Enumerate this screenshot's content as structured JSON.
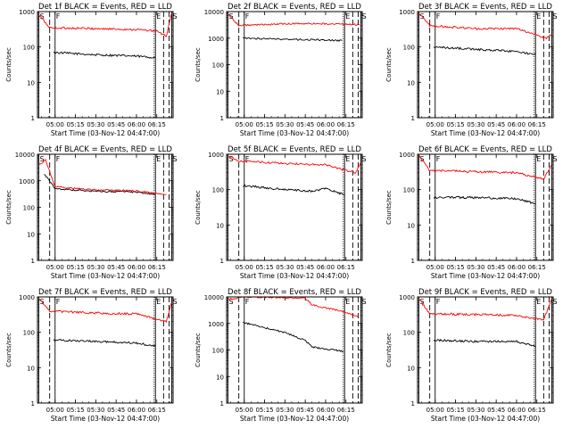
{
  "colors": {
    "background": "#ffffff",
    "axes": "#000000",
    "events": "#000000",
    "lld": "#ff0000"
  },
  "chart_data": [
    {
      "type": "line",
      "title": "Det 1f BLACK = Events, RED = LLD",
      "xlabel": "Start Time (03-Nov-12 04:47:00)",
      "ylabel": "Counts/sec",
      "yscale": "log",
      "ylim": [
        1,
        1000
      ],
      "xlim": [
        "04:47",
        "06:27"
      ],
      "xticks": [
        "05:00",
        "05:15",
        "05:30",
        "05:45",
        "06:00",
        "06:15"
      ],
      "yticks": [
        "1",
        "10",
        "100",
        "1000"
      ],
      "markers": [
        {
          "label": "S",
          "x": "04:48"
        },
        {
          "label": "F",
          "x": "05:00"
        },
        {
          "label": "E",
          "x": "06:14"
        },
        {
          "label": "S",
          "x": "06:26"
        }
      ],
      "vlines_dashed": [
        "04:56",
        "06:20",
        "06:24"
      ],
      "vlines_dotted": [
        "06:13"
      ],
      "series": [
        {
          "name": "Events",
          "color": "#000000",
          "x": [
            "04:59",
            "05:30",
            "06:00",
            "06:14"
          ],
          "values": [
            70,
            60,
            55,
            50
          ]
        },
        {
          "name": "LLD",
          "color": "#ff0000",
          "x": [
            "04:48",
            "04:56",
            "05:30",
            "06:00",
            "06:15",
            "06:22",
            "06:26"
          ],
          "values": [
            800,
            350,
            330,
            310,
            280,
            200,
            900
          ]
        }
      ]
    },
    {
      "type": "line",
      "title": "Det 2f BLACK = Events, RED = LLD",
      "xlabel": "Start Time (03-Nov-12 04:47:00)",
      "ylabel": "Counts/sec",
      "yscale": "log",
      "ylim": [
        1,
        10000
      ],
      "xlim": [
        "04:47",
        "06:27"
      ],
      "xticks": [
        "05:00",
        "05:15",
        "05:30",
        "05:45",
        "06:00",
        "06:15"
      ],
      "yticks": [
        "1",
        "10",
        "100",
        "1000",
        "10000"
      ],
      "markers": [
        {
          "label": "S",
          "x": "04:48"
        },
        {
          "label": "F",
          "x": "05:00"
        },
        {
          "label": "E",
          "x": "06:14"
        },
        {
          "label": "S",
          "x": "06:26"
        }
      ],
      "vlines_dashed": [
        "04:56",
        "06:20",
        "06:24"
      ],
      "vlines_dotted": [
        "06:13"
      ],
      "series": [
        {
          "name": "Events",
          "color": "#000000",
          "x": [
            "04:59",
            "05:30",
            "06:00",
            "06:12"
          ],
          "values": [
            1000,
            900,
            850,
            800
          ]
        },
        {
          "name": "LLD",
          "color": "#ff0000",
          "x": [
            "04:48",
            "04:56",
            "05:30",
            "06:00",
            "06:25"
          ],
          "values": [
            8000,
            3000,
            3500,
            3500,
            3200
          ]
        }
      ]
    },
    {
      "type": "line",
      "title": "Det 3f BLACK = Events, RED = LLD",
      "xlabel": "Start Time (03-Nov-12 04:47:00)",
      "ylabel": "Counts/sec",
      "yscale": "log",
      "ylim": [
        1,
        1000
      ],
      "xlim": [
        "04:47",
        "06:27"
      ],
      "xticks": [
        "05:00",
        "05:15",
        "05:30",
        "05:45",
        "06:00",
        "06:15"
      ],
      "yticks": [
        "1",
        "10",
        "100",
        "1000"
      ],
      "markers": [
        {
          "label": "S",
          "x": "04:48"
        },
        {
          "label": "F",
          "x": "05:00"
        },
        {
          "label": "E",
          "x": "06:14"
        },
        {
          "label": "S",
          "x": "06:26"
        }
      ],
      "vlines_dashed": [
        "04:56",
        "06:20",
        "06:24"
      ],
      "vlines_dotted": [
        "06:13"
      ],
      "series": [
        {
          "name": "Events",
          "color": "#000000",
          "x": [
            "04:59",
            "05:30",
            "06:00",
            "06:14"
          ],
          "values": [
            100,
            85,
            75,
            60
          ]
        },
        {
          "name": "LLD",
          "color": "#ff0000",
          "x": [
            "04:48",
            "04:56",
            "05:30",
            "06:00",
            "06:22",
            "06:26"
          ],
          "values": [
            900,
            400,
            330,
            330,
            180,
            220
          ]
        }
      ]
    },
    {
      "type": "line",
      "title": "Det 4f BLACK = Events, RED = LLD",
      "xlabel": "Start Time (03-Nov-12 04:47:00)",
      "ylabel": "Counts/sec",
      "yscale": "log",
      "ylim": [
        1,
        10000
      ],
      "xlim": [
        "04:47",
        "06:27"
      ],
      "xticks": [
        "05:00",
        "05:15",
        "05:30",
        "05:45",
        "06:00",
        "06:15"
      ],
      "yticks": [
        "1",
        "10",
        "100",
        "1000",
        "10000"
      ],
      "markers": [
        {
          "label": "S",
          "x": "04:48"
        },
        {
          "label": "F",
          "x": "05:00"
        },
        {
          "label": "E",
          "x": "06:14"
        },
        {
          "label": "S",
          "x": "06:26"
        }
      ],
      "vlines_dashed": [
        "04:56",
        "06:20",
        "06:24"
      ],
      "vlines_dotted": [
        "06:13"
      ],
      "series": [
        {
          "name": "Events",
          "color": "#000000",
          "x": [
            "04:52",
            "05:00",
            "05:30",
            "06:00",
            "06:14"
          ],
          "values": [
            1800,
            500,
            400,
            380,
            300
          ]
        },
        {
          "name": "LLD",
          "color": "#ff0000",
          "x": [
            "04:48",
            "04:53",
            "05:00",
            "05:30",
            "06:00",
            "06:22"
          ],
          "values": [
            4000,
            6000,
            600,
            450,
            420,
            300
          ]
        }
      ]
    },
    {
      "type": "line",
      "title": "Det 5f BLACK = Events, RED = LLD",
      "xlabel": "Start Time (03-Nov-12 04:47:00)",
      "ylabel": "Counts/sec",
      "yscale": "log",
      "ylim": [
        1,
        1000
      ],
      "xlim": [
        "04:47",
        "06:27"
      ],
      "xticks": [
        "05:00",
        "05:15",
        "05:30",
        "05:45",
        "06:00",
        "06:15"
      ],
      "yticks": [
        "1",
        "10",
        "100",
        "1000"
      ],
      "markers": [
        {
          "label": "S",
          "x": "04:48"
        },
        {
          "label": "F",
          "x": "05:00"
        },
        {
          "label": "E",
          "x": "06:14"
        },
        {
          "label": "S",
          "x": "06:26"
        }
      ],
      "vlines_dashed": [
        "04:56",
        "06:20",
        "06:24"
      ],
      "vlines_dotted": [
        "06:13"
      ],
      "series": [
        {
          "name": "Events",
          "color": "#000000",
          "x": [
            "04:59",
            "05:30",
            "05:50",
            "06:00",
            "06:14"
          ],
          "values": [
            130,
            100,
            90,
            110,
            70
          ]
        },
        {
          "name": "LLD",
          "color": "#ff0000",
          "x": [
            "04:48",
            "04:56",
            "05:30",
            "06:00",
            "06:22",
            "06:26"
          ],
          "values": [
            900,
            650,
            550,
            500,
            300,
            600
          ]
        }
      ]
    },
    {
      "type": "line",
      "title": "Det 6f BLACK = Events, RED = LLD",
      "xlabel": "Start Time (03-Nov-12 04:47:00)",
      "ylabel": "Counts/sec",
      "yscale": "log",
      "ylim": [
        1,
        1000
      ],
      "xlim": [
        "04:47",
        "06:27"
      ],
      "xticks": [
        "05:00",
        "05:15",
        "05:30",
        "05:45",
        "06:00",
        "06:15"
      ],
      "yticks": [
        "1",
        "10",
        "100",
        "1000"
      ],
      "markers": [
        {
          "label": "S",
          "x": "04:48"
        },
        {
          "label": "F",
          "x": "05:00"
        },
        {
          "label": "E",
          "x": "06:14"
        },
        {
          "label": "S",
          "x": "06:26"
        }
      ],
      "vlines_dashed": [
        "04:56",
        "06:20",
        "06:24"
      ],
      "vlines_dotted": [
        "06:13"
      ],
      "series": [
        {
          "name": "Events",
          "color": "#000000",
          "x": [
            "04:59",
            "05:30",
            "06:00",
            "06:14"
          ],
          "values": [
            60,
            60,
            55,
            40
          ]
        },
        {
          "name": "LLD",
          "color": "#ff0000",
          "x": [
            "04:48",
            "04:56",
            "05:30",
            "06:00",
            "06:20",
            "06:26"
          ],
          "values": [
            900,
            350,
            320,
            300,
            200,
            500
          ]
        }
      ]
    },
    {
      "type": "line",
      "title": "Det 7f BLACK = Events, RED = LLD",
      "xlabel": "Start Time (03-Nov-12 04:47:00)",
      "ylabel": "Counts/sec",
      "yscale": "log",
      "ylim": [
        1,
        1000
      ],
      "xlim": [
        "04:47",
        "06:27"
      ],
      "xticks": [
        "05:00",
        "05:15",
        "05:30",
        "05:45",
        "06:00",
        "06:15"
      ],
      "yticks": [
        "1",
        "10",
        "100",
        "1000"
      ],
      "markers": [
        {
          "label": "S",
          "x": "04:48"
        },
        {
          "label": "F",
          "x": "05:00"
        },
        {
          "label": "E",
          "x": "06:14"
        },
        {
          "label": "S",
          "x": "06:26"
        }
      ],
      "vlines_dashed": [
        "04:56",
        "06:20",
        "06:24"
      ],
      "vlines_dotted": [
        "06:13"
      ],
      "series": [
        {
          "name": "Events",
          "color": "#000000",
          "x": [
            "04:59",
            "05:30",
            "06:00",
            "06:14"
          ],
          "values": [
            60,
            55,
            50,
            40
          ]
        },
        {
          "name": "LLD",
          "color": "#ff0000",
          "x": [
            "04:48",
            "04:56",
            "05:30",
            "06:00",
            "06:22",
            "06:26"
          ],
          "values": [
            900,
            400,
            350,
            330,
            200,
            700
          ]
        }
      ]
    },
    {
      "type": "line",
      "title": "Det 8f BLACK = Events, RED = LLD",
      "xlabel": "Start Time (03-Nov-12 04:47:00)",
      "ylabel": "Counts/sec",
      "yscale": "log",
      "ylim": [
        1,
        10000
      ],
      "xlim": [
        "04:47",
        "06:27"
      ],
      "xticks": [
        "05:00",
        "05:15",
        "05:30",
        "05:45",
        "06:00",
        "06:15"
      ],
      "yticks": [
        "1",
        "10",
        "100",
        "1000",
        "10000"
      ],
      "markers": [
        {
          "label": "S",
          "x": "04:48"
        },
        {
          "label": "F",
          "x": "05:00"
        },
        {
          "label": "E",
          "x": "06:14"
        },
        {
          "label": "S",
          "x": "06:26"
        }
      ],
      "vlines_dashed": [
        "04:56",
        "06:20",
        "06:24"
      ],
      "vlines_dotted": [
        "06:13"
      ],
      "series": [
        {
          "name": "Events",
          "color": "#000000",
          "x": [
            "04:59",
            "05:30",
            "05:45",
            "05:50",
            "06:00",
            "06:13"
          ],
          "values": [
            1100,
            450,
            230,
            130,
            110,
            90
          ]
        },
        {
          "name": "LLD",
          "color": "#ff0000",
          "x": [
            "04:48",
            "05:00",
            "05:45",
            "05:50",
            "06:13",
            "06:24"
          ],
          "values": [
            8000,
            10000,
            9000,
            5000,
            2800,
            1800
          ]
        }
      ]
    },
    {
      "type": "line",
      "title": "Det 9f BLACK = Events, RED = LLD",
      "xlabel": "Start Time (03-Nov-12 04:47:00)",
      "ylabel": "Counts/sec",
      "yscale": "log",
      "ylim": [
        1,
        1000
      ],
      "xlim": [
        "04:47",
        "06:27"
      ],
      "xticks": [
        "05:00",
        "05:15",
        "05:30",
        "05:45",
        "06:00",
        "06:15"
      ],
      "yticks": [
        "1",
        "10",
        "100",
        "1000"
      ],
      "markers": [
        {
          "label": "S",
          "x": "04:48"
        },
        {
          "label": "F",
          "x": "05:00"
        },
        {
          "label": "E",
          "x": "06:14"
        },
        {
          "label": "S",
          "x": "06:26"
        }
      ],
      "vlines_dashed": [
        "04:56",
        "06:20",
        "06:24"
      ],
      "vlines_dotted": [
        "06:13"
      ],
      "series": [
        {
          "name": "Events",
          "color": "#000000",
          "x": [
            "04:59",
            "05:30",
            "06:00",
            "06:14"
          ],
          "values": [
            60,
            55,
            55,
            40
          ]
        },
        {
          "name": "LLD",
          "color": "#ff0000",
          "x": [
            "04:48",
            "04:56",
            "05:30",
            "06:00",
            "06:20",
            "06:26"
          ],
          "values": [
            900,
            330,
            320,
            300,
            220,
            900
          ]
        }
      ]
    }
  ]
}
